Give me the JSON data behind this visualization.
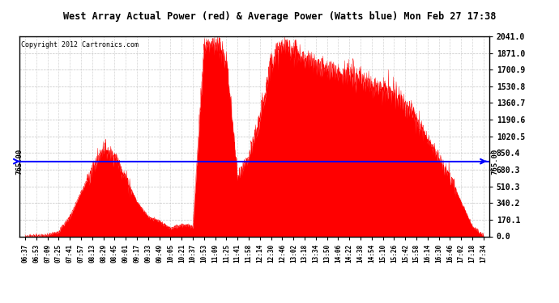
{
  "title": "West Array Actual Power (red) & Average Power (Watts blue) Mon Feb 27 17:38",
  "copyright": "Copyright 2012 Cartronics.com",
  "avg_power": 765.0,
  "ymax": 2041.0,
  "yticks": [
    0.0,
    170.1,
    340.2,
    510.3,
    680.3,
    850.4,
    1020.5,
    1190.6,
    1360.7,
    1530.8,
    1700.9,
    1871.0,
    2041.0
  ],
  "ytick_labels": [
    "0.0",
    "170.1",
    "340.2",
    "510.3",
    "680.3",
    "850.4",
    "1020.5",
    "1190.6",
    "1360.7",
    "1530.8",
    "1700.9",
    "1871.0",
    "2041.0"
  ],
  "xtick_labels": [
    "06:37",
    "06:53",
    "07:09",
    "07:25",
    "07:41",
    "07:57",
    "08:13",
    "08:29",
    "08:45",
    "09:01",
    "09:17",
    "09:33",
    "09:49",
    "10:05",
    "10:21",
    "10:37",
    "10:53",
    "11:09",
    "11:25",
    "11:41",
    "11:58",
    "12:14",
    "12:30",
    "12:46",
    "13:02",
    "13:18",
    "13:34",
    "13:50",
    "14:06",
    "14:22",
    "14:38",
    "14:54",
    "15:10",
    "15:26",
    "15:42",
    "15:58",
    "16:14",
    "16:30",
    "16:46",
    "17:02",
    "17:18",
    "17:34"
  ],
  "bg_color": "#ffffff",
  "fill_color": "#ff0000",
  "line_color": "#0000ff",
  "grid_color": "#aaaaaa",
  "title_bg": "#cccccc",
  "power_values": [
    0,
    5,
    10,
    50,
    200,
    450,
    680,
    900,
    820,
    600,
    350,
    200,
    150,
    80,
    120,
    100,
    1950,
    1980,
    1800,
    600,
    800,
    1200,
    1800,
    1950,
    1900,
    1800,
    1750,
    1700,
    1680,
    1650,
    1600,
    1550,
    1500,
    1450,
    1350,
    1200,
    1000,
    800,
    600,
    350,
    100,
    10
  ]
}
